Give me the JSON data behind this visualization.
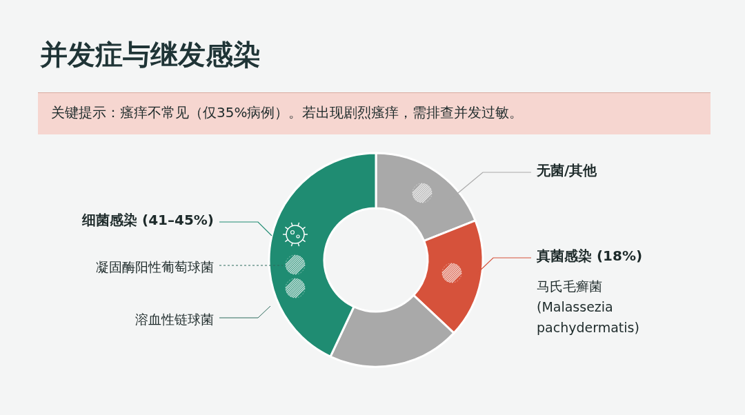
{
  "chart_data": {
    "type": "donut",
    "title": "并发症与继发感染",
    "subtitle": "关键提示：瘙痒不常见（仅35%病例）。若出现剧烈瘙痒，需排查并发过敏。",
    "categories": [
      "无菌/其他",
      "真菌感染 (18%)",
      null,
      "细菌感染 (41–45%)"
    ],
    "values": [
      19,
      18,
      20,
      43
    ],
    "colors": [
      "#a9a9a9",
      "#d6523b",
      "#a9a9a9",
      "#1f8c72"
    ],
    "annotations": [
      "凝固酶阳性葡萄球菌",
      "溶血性链球菌",
      "马氏毛癣菌 (Malassezia pachydermatis)"
    ]
  }
}
